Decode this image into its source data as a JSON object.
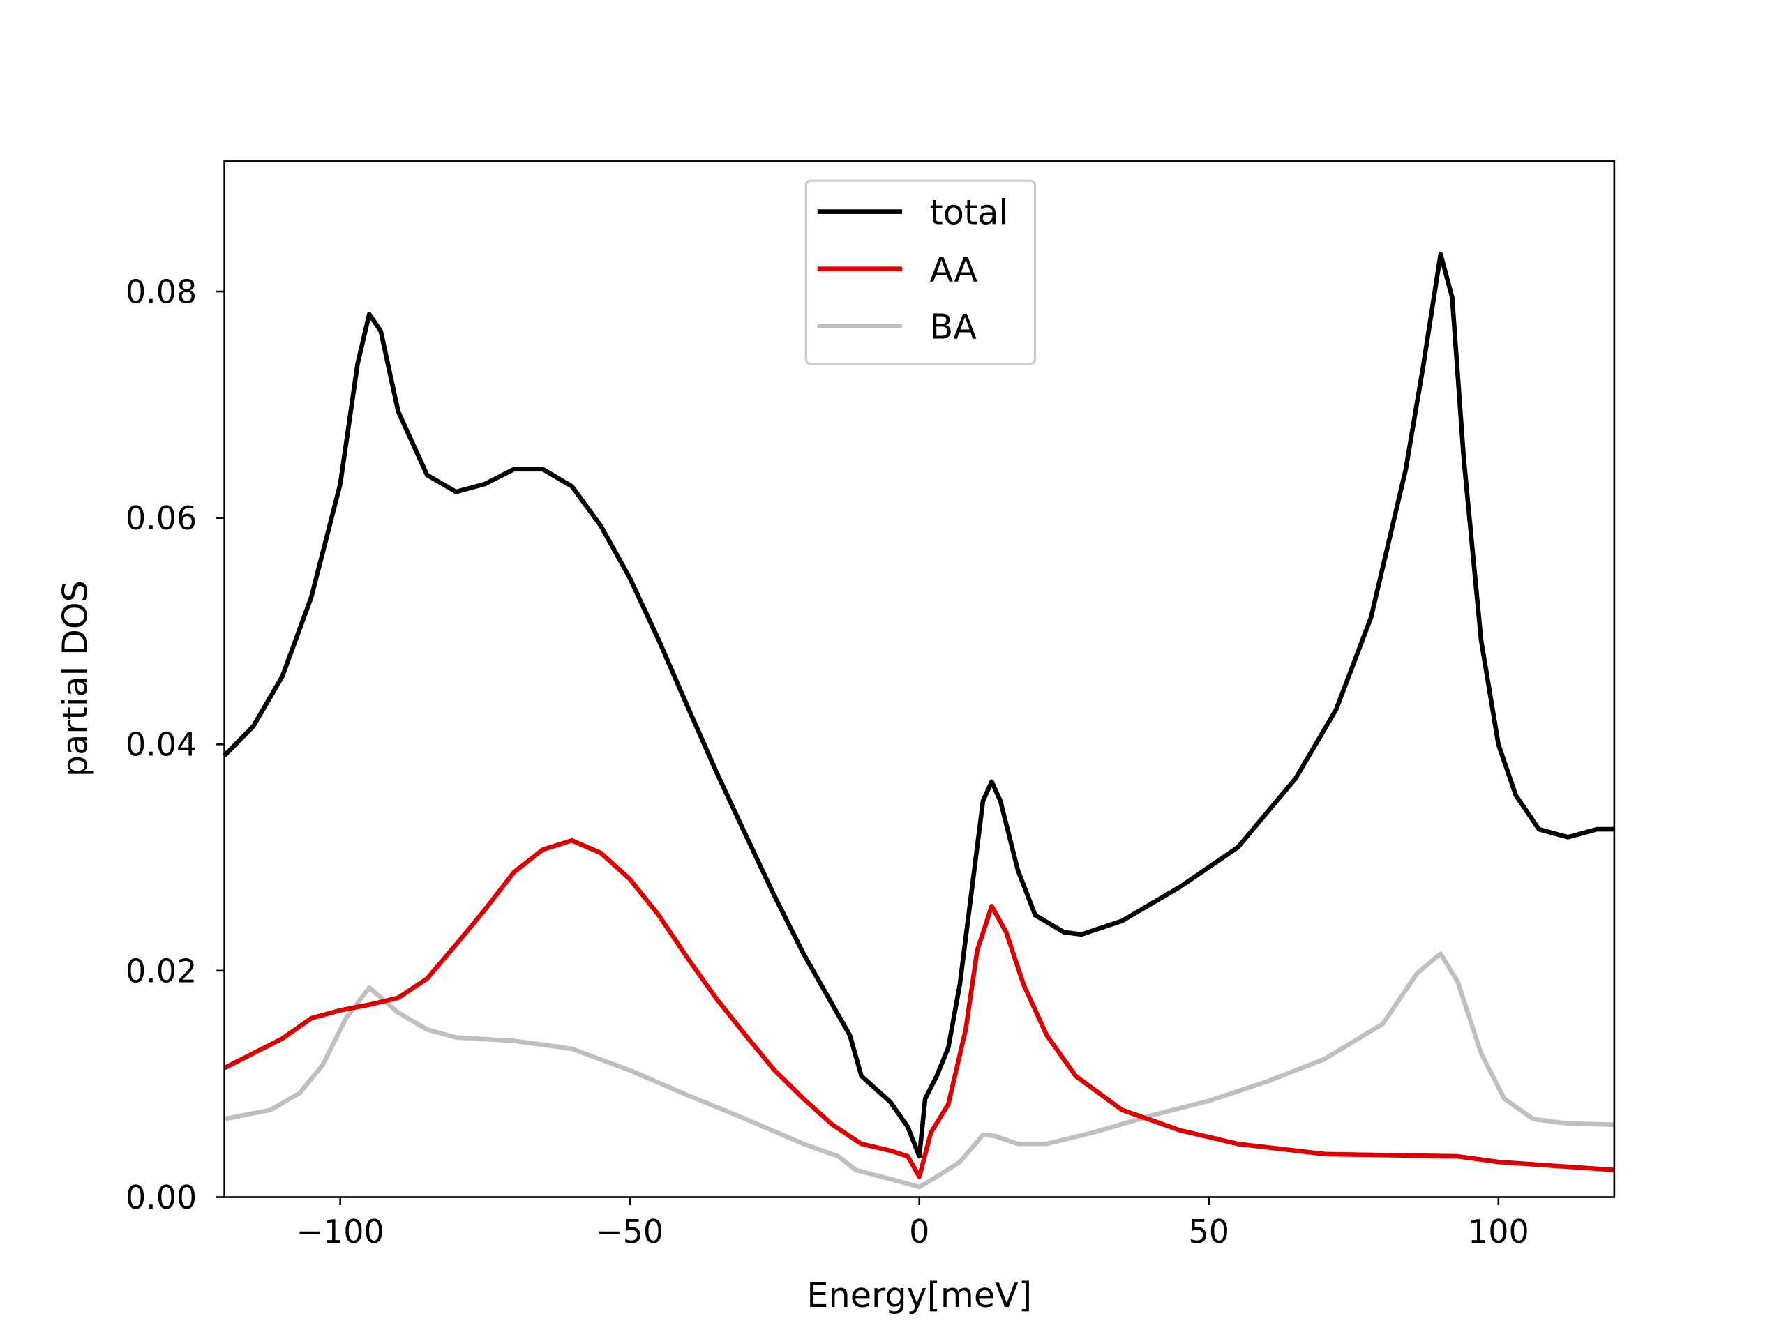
{
  "chart_data": {
    "type": "line",
    "title": "",
    "xlabel": "Energy[meV]",
    "ylabel": "partial DOS",
    "xlim": [
      -120,
      120
    ],
    "ylim": [
      0,
      0.0915
    ],
    "xticks": [
      -100,
      -50,
      0,
      50,
      100
    ],
    "xtick_labels": [
      "−100",
      "−50",
      "0",
      "50",
      "100"
    ],
    "yticks": [
      0,
      0.02,
      0.04,
      0.06,
      0.08
    ],
    "ytick_labels": [
      "0.00",
      "0.02",
      "0.04",
      "0.06",
      "0.08"
    ],
    "grid": false,
    "legend_position": "top-center",
    "series": [
      {
        "name": "total",
        "color": "#000000",
        "x": [
          -120,
          -115,
          -110,
          -105,
          -100,
          -97,
          -95,
          -93,
          -90,
          -85,
          -80,
          -75,
          -70,
          -65,
          -60,
          -55,
          -50,
          -45,
          -40,
          -35,
          -30,
          -25,
          -20,
          -15,
          -12,
          -10,
          -5,
          -2,
          0,
          1,
          3,
          5,
          7,
          9,
          11,
          12.5,
          14,
          17,
          20,
          25,
          28,
          35,
          45,
          55,
          65,
          72,
          78,
          84,
          87,
          90,
          92,
          94,
          97,
          100,
          103,
          107,
          112,
          117,
          120
        ],
        "y": [
          0.039,
          0.0416,
          0.046,
          0.053,
          0.063,
          0.0736,
          0.078,
          0.0765,
          0.0694,
          0.0638,
          0.0623,
          0.063,
          0.0643,
          0.0643,
          0.0628,
          0.0593,
          0.0547,
          0.0492,
          0.0433,
          0.0375,
          0.032,
          0.0266,
          0.0215,
          0.017,
          0.0143,
          0.0107,
          0.0084,
          0.0062,
          0.0036,
          0.0087,
          0.0107,
          0.0132,
          0.0188,
          0.0269,
          0.035,
          0.0367,
          0.035,
          0.0289,
          0.0249,
          0.0234,
          0.0232,
          0.0244,
          0.0274,
          0.0309,
          0.037,
          0.0431,
          0.0512,
          0.0643,
          0.0734,
          0.0833,
          0.0795,
          0.0653,
          0.0492,
          0.04,
          0.0355,
          0.0325,
          0.0318,
          0.0325,
          0.0325
        ]
      },
      {
        "name": "AA",
        "color": "#dd0000",
        "x": [
          -120,
          -110,
          -105,
          -100,
          -95,
          -90,
          -85,
          -80,
          -75,
          -70,
          -65,
          -60,
          -55,
          -50,
          -45,
          -40,
          -35,
          -30,
          -25,
          -20,
          -15,
          -10,
          -5,
          -2,
          0,
          2,
          5,
          8,
          10,
          12.5,
          15,
          18,
          22,
          27,
          35,
          45,
          55,
          70,
          93,
          100,
          120
        ],
        "y": [
          0.0114,
          0.014,
          0.0158,
          0.0165,
          0.017,
          0.0176,
          0.0193,
          0.0223,
          0.0254,
          0.0287,
          0.0307,
          0.0315,
          0.0304,
          0.0281,
          0.0249,
          0.0211,
          0.0175,
          0.0143,
          0.0112,
          0.0087,
          0.0064,
          0.0047,
          0.0041,
          0.0036,
          0.0018,
          0.0057,
          0.0082,
          0.0148,
          0.0218,
          0.0257,
          0.0234,
          0.0188,
          0.0143,
          0.0107,
          0.0077,
          0.0059,
          0.0047,
          0.0038,
          0.0036,
          0.0031,
          0.0024
        ]
      },
      {
        "name": "BA",
        "color": "#bfbfbf",
        "x": [
          -120,
          -112,
          -107,
          -103,
          -99,
          -95,
          -90,
          -85,
          -80,
          -70,
          -60,
          -50,
          -40,
          -30,
          -20,
          -14,
          -11,
          -5,
          0,
          3,
          7,
          11,
          13,
          17,
          22,
          30,
          40,
          50,
          60,
          70,
          80,
          86,
          90,
          93,
          97,
          101,
          106,
          112,
          120
        ],
        "y": [
          0.0069,
          0.0077,
          0.0092,
          0.0117,
          0.0158,
          0.0185,
          0.0163,
          0.0148,
          0.0141,
          0.0138,
          0.0131,
          0.0112,
          0.009,
          0.0069,
          0.0047,
          0.0036,
          0.0024,
          0.0016,
          0.0009,
          0.0018,
          0.0031,
          0.0055,
          0.0054,
          0.0047,
          0.0047,
          0.0057,
          0.0072,
          0.0085,
          0.0102,
          0.0122,
          0.0153,
          0.0198,
          0.0215,
          0.019,
          0.0127,
          0.0087,
          0.0069,
          0.0065,
          0.0064
        ]
      }
    ]
  }
}
